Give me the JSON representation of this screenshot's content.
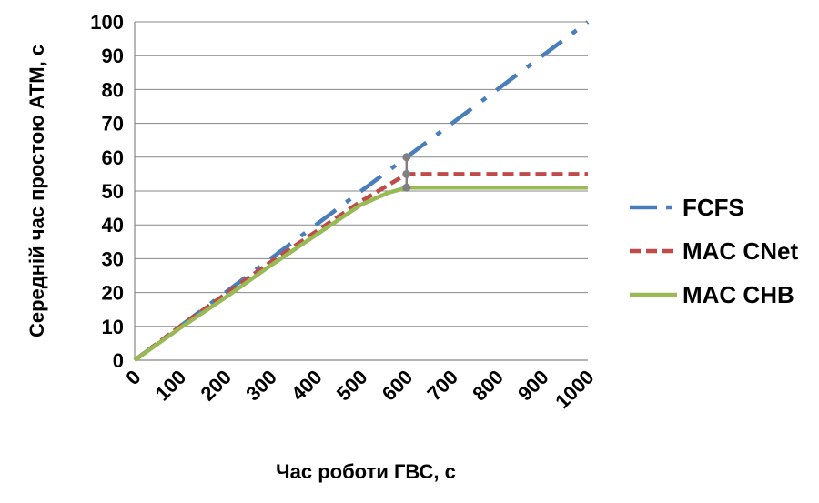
{
  "chart_data": {
    "type": "line",
    "title": "",
    "xlabel": "Час роботи ГВС, с",
    "ylabel": "Середній час простою АТМ, с",
    "xlim": [
      0,
      1000
    ],
    "ylim": [
      0,
      100
    ],
    "x_ticks": [
      0,
      100,
      200,
      300,
      400,
      500,
      600,
      700,
      800,
      900,
      1000
    ],
    "y_ticks": [
      0,
      10,
      20,
      30,
      40,
      50,
      60,
      70,
      80,
      90,
      100
    ],
    "grid": "horizontal",
    "legend_position": "right",
    "series": [
      {
        "name": "FCFS",
        "color": "#4a7ebb",
        "style": "dash-dot",
        "points": [
          [
            0,
            0
          ],
          [
            1000,
            100
          ]
        ]
      },
      {
        "name": "MAC CNet",
        "color": "#be4b48",
        "style": "dashed",
        "points": [
          [
            0,
            0
          ],
          [
            100,
            10
          ],
          [
            200,
            19.5
          ],
          [
            300,
            29
          ],
          [
            400,
            38
          ],
          [
            500,
            47
          ],
          [
            600,
            55
          ],
          [
            1000,
            55
          ]
        ]
      },
      {
        "name": "MAC CHB",
        "color": "#98b954",
        "style": "solid",
        "points": [
          [
            0,
            0
          ],
          [
            100,
            9.5
          ],
          [
            200,
            18.5
          ],
          [
            300,
            28
          ],
          [
            400,
            37
          ],
          [
            500,
            46
          ],
          [
            560,
            49.5
          ],
          [
            600,
            51
          ],
          [
            1000,
            51
          ]
        ]
      }
    ],
    "annotation": {
      "type": "marker-bar",
      "x": 600,
      "y_values": [
        51,
        55,
        60
      ],
      "color": "#808080"
    }
  }
}
